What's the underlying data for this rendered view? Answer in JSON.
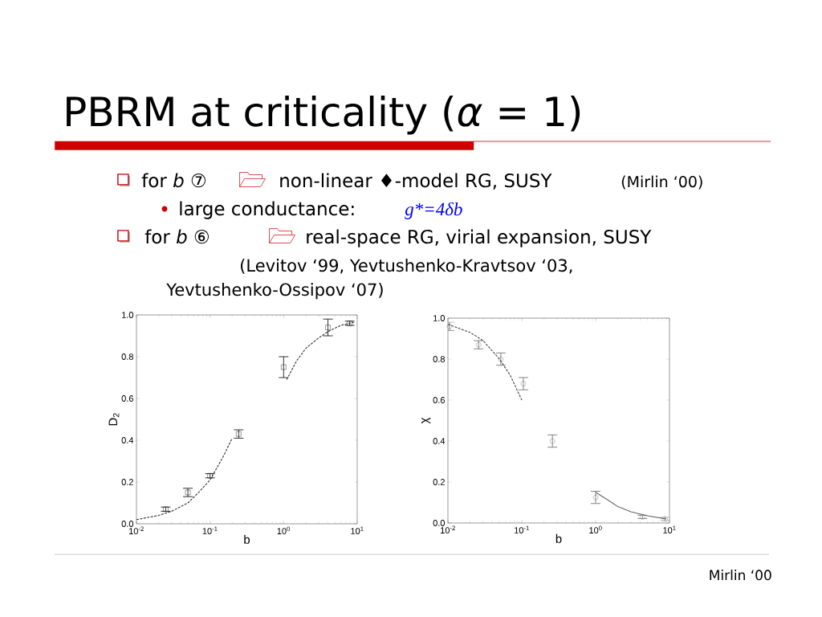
{
  "chart_data": [
    {
      "type": "scatter",
      "title": "PBRM at criticality (*α* = 1)",
      "xlabel": "b",
      "ylabel": "D$_{2}$",
      "log": "x",
      "xlim": [
        0.01,
        10
      ],
      "ylim": [
        0,
        1
      ],
      "xticks": [
        {
          "value": 0.01,
          "label": "10$^{-2}$"
        },
        {
          "value": 0.1,
          "label": "10$^{-1}$"
        },
        {
          "value": 1,
          "label": "10$^{0}$"
        },
        {
          "value": 10,
          "label": "10$^{1}$"
        }
      ],
      "yticks": [
        {
          "value": 0,
          "label": "0.0"
        },
        {
          "value": 0.2,
          "label": "0.2"
        },
        {
          "value": 0.4,
          "label": "0.4"
        },
        {
          "value": 0.6,
          "label": "0.6"
        },
        {
          "value": 0.8,
          "label": "0.8"
        },
        {
          "value": 1,
          "label": "1.0"
        }
      ],
      "series": [
        {
          "marker": "square",
          "color": "#000000",
          "x": [
            0.025,
            0.05,
            0.1,
            0.245,
            1.0,
            4.0,
            7.9
          ],
          "values": [
            0.07,
            0.15,
            0.23,
            0.43,
            0.75,
            0.94,
            0.96
          ],
          "errors": [
            0.01,
            0.02,
            0.01,
            0.02,
            0.05,
            0.04,
            0.01
          ]
        },
        {
          "type": "line",
          "line_style": "dashed",
          "color": "#333333",
          "x": [
            0.01,
            0.02,
            0.03,
            0.05,
            0.07,
            0.1,
            0.15,
            0.2
          ],
          "values": [
            0.02,
            0.04,
            0.06,
            0.1,
            0.15,
            0.21,
            0.32,
            0.41
          ]
        },
        {
          "type": "line",
          "line_style": "dashed",
          "color": "#333333",
          "x": [
            1.1,
            1.5,
            2,
            3,
            4,
            6,
            9
          ],
          "values": [
            0.69,
            0.78,
            0.84,
            0.89,
            0.92,
            0.95,
            0.965
          ]
        }
      ],
      "annotations": [
        "for *b* ⑦",
        "non-linear ♦-model RG, SUSY",
        "(Mirlin ‘00)",
        "large conductance:",
        "g*=4δb",
        "for *b* ⑥",
        "real-space RG, virial expansion, SUSY",
        "(Levitov ‘99, Yevtushenko-Kravtsov ‘03,",
        "Yevtushenko-Ossipov ‘07)",
        "Mirlin ‘00"
      ]
    },
    {
      "type": "scatter",
      "xlabel": "b",
      "ylabel": "χ",
      "log": "x",
      "xlim": [
        0.01,
        10
      ],
      "ylim": [
        0,
        1
      ],
      "xticks": [
        {
          "value": 0.01,
          "label": "10$^{-2}$"
        },
        {
          "value": 0.1,
          "label": "10$^{-1}$"
        },
        {
          "value": 1,
          "label": "10$^{0}$"
        },
        {
          "value": 10,
          "label": "10$^{1}$"
        }
      ],
      "yticks": [
        {
          "value": 0,
          "label": "0.0"
        },
        {
          "value": 0.2,
          "label": "0.2"
        },
        {
          "value": 0.4,
          "label": "0.4"
        },
        {
          "value": 0.6,
          "label": "0.6"
        },
        {
          "value": 0.8,
          "label": "0.8"
        },
        {
          "value": 1,
          "label": "1.0"
        }
      ],
      "series": [
        {
          "marker": "circle",
          "color": "#666666",
          "x": [
            0.0105,
            0.026,
            0.052,
            0.105,
            0.26,
            1.0,
            4.3,
            8.7
          ],
          "values": [
            0.96,
            0.87,
            0.8,
            0.68,
            0.4,
            0.125,
            0.03,
            0.02
          ],
          "errors": [
            0.02,
            0.02,
            0.03,
            0.03,
            0.03,
            0.03,
            0.008,
            0.008
          ]
        },
        {
          "type": "line",
          "line_style": "dashed",
          "color": "#444444",
          "x": [
            0.01,
            0.02,
            0.03,
            0.05,
            0.07,
            0.1
          ],
          "values": [
            0.97,
            0.93,
            0.89,
            0.8,
            0.72,
            0.6
          ]
        },
        {
          "type": "line",
          "line_style": "solid",
          "color": "#666666",
          "x": [
            1.0,
            1.5,
            2,
            3,
            5,
            9
          ],
          "values": [
            0.15,
            0.11,
            0.08,
            0.055,
            0.035,
            0.02
          ]
        }
      ]
    }
  ]
}
